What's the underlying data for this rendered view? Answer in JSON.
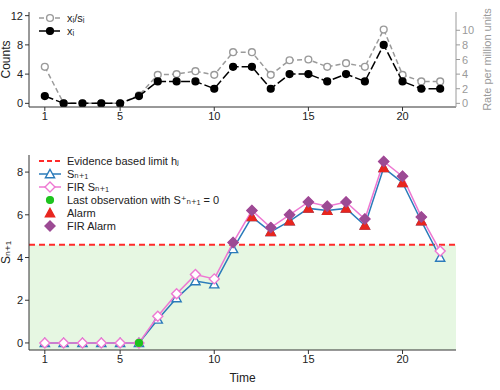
{
  "chart_data": [
    {
      "type": "line",
      "y_label": "Counts",
      "y2_label": "Rate per million units",
      "x": [
        1,
        2,
        3,
        4,
        5,
        6,
        7,
        8,
        9,
        10,
        11,
        12,
        13,
        14,
        15,
        16,
        17,
        18,
        19,
        20,
        21,
        22
      ],
      "xlim": [
        0.16,
        22.84
      ],
      "xticks": [
        1,
        5,
        10,
        15,
        20
      ],
      "ylim": [
        -0.5,
        12.5
      ],
      "yticks": [
        0,
        4,
        8,
        12
      ],
      "y2lim": [
        -0.5,
        12.5
      ],
      "y2ticks": [
        0,
        2,
        4,
        6,
        8,
        10
      ],
      "legend": "top-left",
      "series": [
        {
          "name": "xᵢ/sᵢ",
          "color": "#9a9a9a",
          "marker": "circle-open",
          "line_style": "dashed",
          "axis": "y2",
          "values": [
            5,
            0,
            0,
            0,
            0,
            1.1,
            3.9,
            4,
            4.4,
            3.9,
            7,
            7,
            3.9,
            5.9,
            6,
            5,
            5.5,
            5,
            10.1,
            3.9,
            3,
            3
          ]
        },
        {
          "name": "xᵢ",
          "color": "#000000",
          "marker": "circle",
          "line_style": "longdash",
          "values": [
            1,
            0,
            0,
            0,
            0,
            1,
            3,
            3,
            3,
            2,
            5,
            5,
            2,
            4,
            4,
            3,
            4,
            3,
            8,
            3,
            2,
            2
          ]
        }
      ]
    },
    {
      "type": "line",
      "x_label": "Time",
      "y_label": "Sₙ₊₁",
      "x": [
        1,
        2,
        3,
        4,
        5,
        6,
        7,
        8,
        9,
        10,
        11,
        12,
        13,
        14,
        15,
        16,
        17,
        18,
        19,
        20,
        21,
        22
      ],
      "xlim": [
        0.16,
        22.84
      ],
      "xticks": [
        1,
        5,
        10,
        15,
        20
      ],
      "ylim": [
        -0.33,
        8.8
      ],
      "yticks": [
        0,
        2,
        4,
        6,
        8
      ],
      "legend": "top-left",
      "hline": {
        "value": 4.6,
        "label": "Evidence based limit hⱼ",
        "color": "#ff2a2a"
      },
      "series": [
        {
          "name": "Sₙ₊₁",
          "color": "#2b7bba",
          "marker": "triangle-open",
          "line_style": "solid",
          "values": [
            0,
            0,
            0,
            0,
            0,
            0,
            1.1,
            2.1,
            2.9,
            2.75,
            4.4,
            5.9,
            5.2,
            5.7,
            6.3,
            6.2,
            6.3,
            5.5,
            8.2,
            7.5,
            5.7,
            4.0
          ]
        },
        {
          "name": "FIR Sₙ₊₁",
          "color": "#ee78d2",
          "marker": "diamond-open",
          "line_style": "solid",
          "values": [
            0,
            0,
            0,
            0,
            0,
            0,
            1.25,
            2.3,
            3.2,
            3.0,
            4.7,
            6.2,
            5.4,
            6.0,
            6.6,
            6.4,
            6.6,
            5.8,
            8.5,
            7.8,
            5.9,
            4.3
          ]
        },
        {
          "name": "Last observation with S⁺ₙ₊₁ = 0",
          "color": "#1ec31e",
          "marker": "circle",
          "line_style": "none",
          "values": [
            null,
            null,
            null,
            null,
            null,
            0,
            null,
            null,
            null,
            null,
            null,
            null,
            null,
            null,
            null,
            null,
            null,
            null,
            null,
            null,
            null,
            null
          ]
        },
        {
          "name": "Alarm",
          "color": "#e8261f",
          "marker": "triangle",
          "line_style": "none",
          "values": [
            null,
            null,
            null,
            null,
            null,
            null,
            null,
            null,
            null,
            null,
            null,
            5.9,
            5.2,
            5.7,
            6.3,
            6.2,
            6.3,
            5.5,
            8.2,
            7.5,
            5.7,
            null
          ]
        },
        {
          "name": "FIR Alarm",
          "color": "#9c4b94",
          "marker": "diamond",
          "line_style": "none",
          "values": [
            null,
            null,
            null,
            null,
            null,
            null,
            null,
            null,
            null,
            null,
            4.7,
            6.2,
            5.4,
            6.0,
            6.6,
            6.4,
            6.6,
            5.8,
            8.5,
            7.8,
            5.9,
            null
          ]
        }
      ]
    }
  ]
}
